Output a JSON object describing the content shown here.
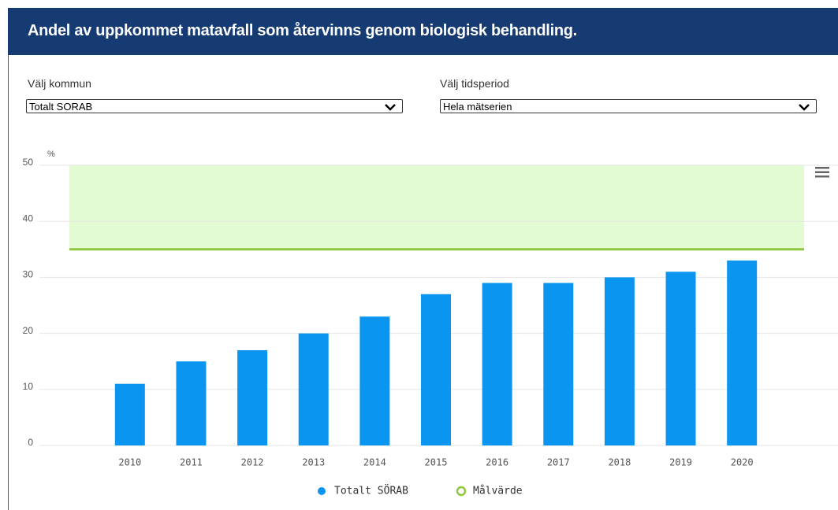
{
  "title": "Andel av uppkommet matavfall som återvinns genom biologisk behandling.",
  "controls": [
    {
      "label": "Välj kommun",
      "selected": "Totalt SORAB"
    },
    {
      "label": "Välj tidsperiod",
      "selected": "Hela mätserien"
    }
  ],
  "chart_data": {
    "type": "bar",
    "y_label": "%",
    "categories": [
      "2010",
      "2011",
      "2012",
      "2013",
      "2014",
      "2015",
      "2016",
      "2017",
      "2018",
      "2019",
      "2020"
    ],
    "series": [
      {
        "name": "Totalt SÖRAB",
        "color": "#0a96f0",
        "values": [
          11,
          15,
          17,
          20,
          23,
          27,
          29,
          29,
          30,
          31,
          33
        ]
      },
      {
        "name": "Målvärde",
        "color": "#8dc63f",
        "value": 35
      }
    ],
    "ylim": [
      0,
      50
    ],
    "yticks": [
      0,
      10,
      20,
      30,
      40,
      50
    ],
    "grid": true,
    "legend": "bottom"
  }
}
